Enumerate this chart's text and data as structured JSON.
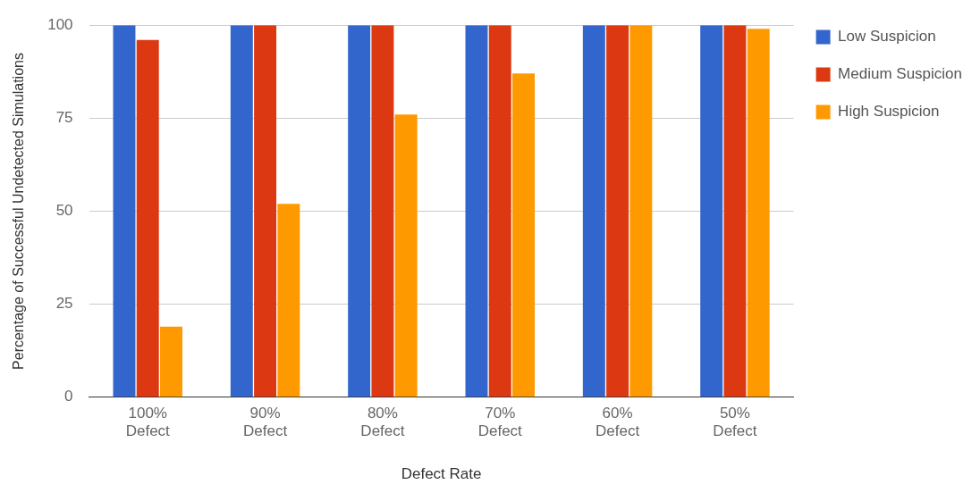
{
  "chart_data": {
    "type": "bar",
    "xlabel": "Defect Rate",
    "ylabel": "Percentage of Successful Undetected Simulations",
    "categories": [
      "100% Defect",
      "90% Defect",
      "80% Defect",
      "70% Defect",
      "60% Defect",
      "50% Defect"
    ],
    "series": [
      {
        "name": "Low Suspicion",
        "color": "#3366cc",
        "values": [
          100,
          100,
          100,
          100,
          100,
          100
        ]
      },
      {
        "name": "Medium Suspicion",
        "color": "#dc3912",
        "values": [
          96,
          100,
          100,
          100,
          100,
          100
        ]
      },
      {
        "name": "High Suspicion",
        "color": "#ff9900",
        "values": [
          19,
          52,
          76,
          87,
          100,
          99
        ]
      }
    ],
    "ylim": [
      0,
      100
    ],
    "yticks": [
      0,
      25,
      50,
      75,
      100
    ],
    "grid": "y",
    "legend": "top right"
  }
}
